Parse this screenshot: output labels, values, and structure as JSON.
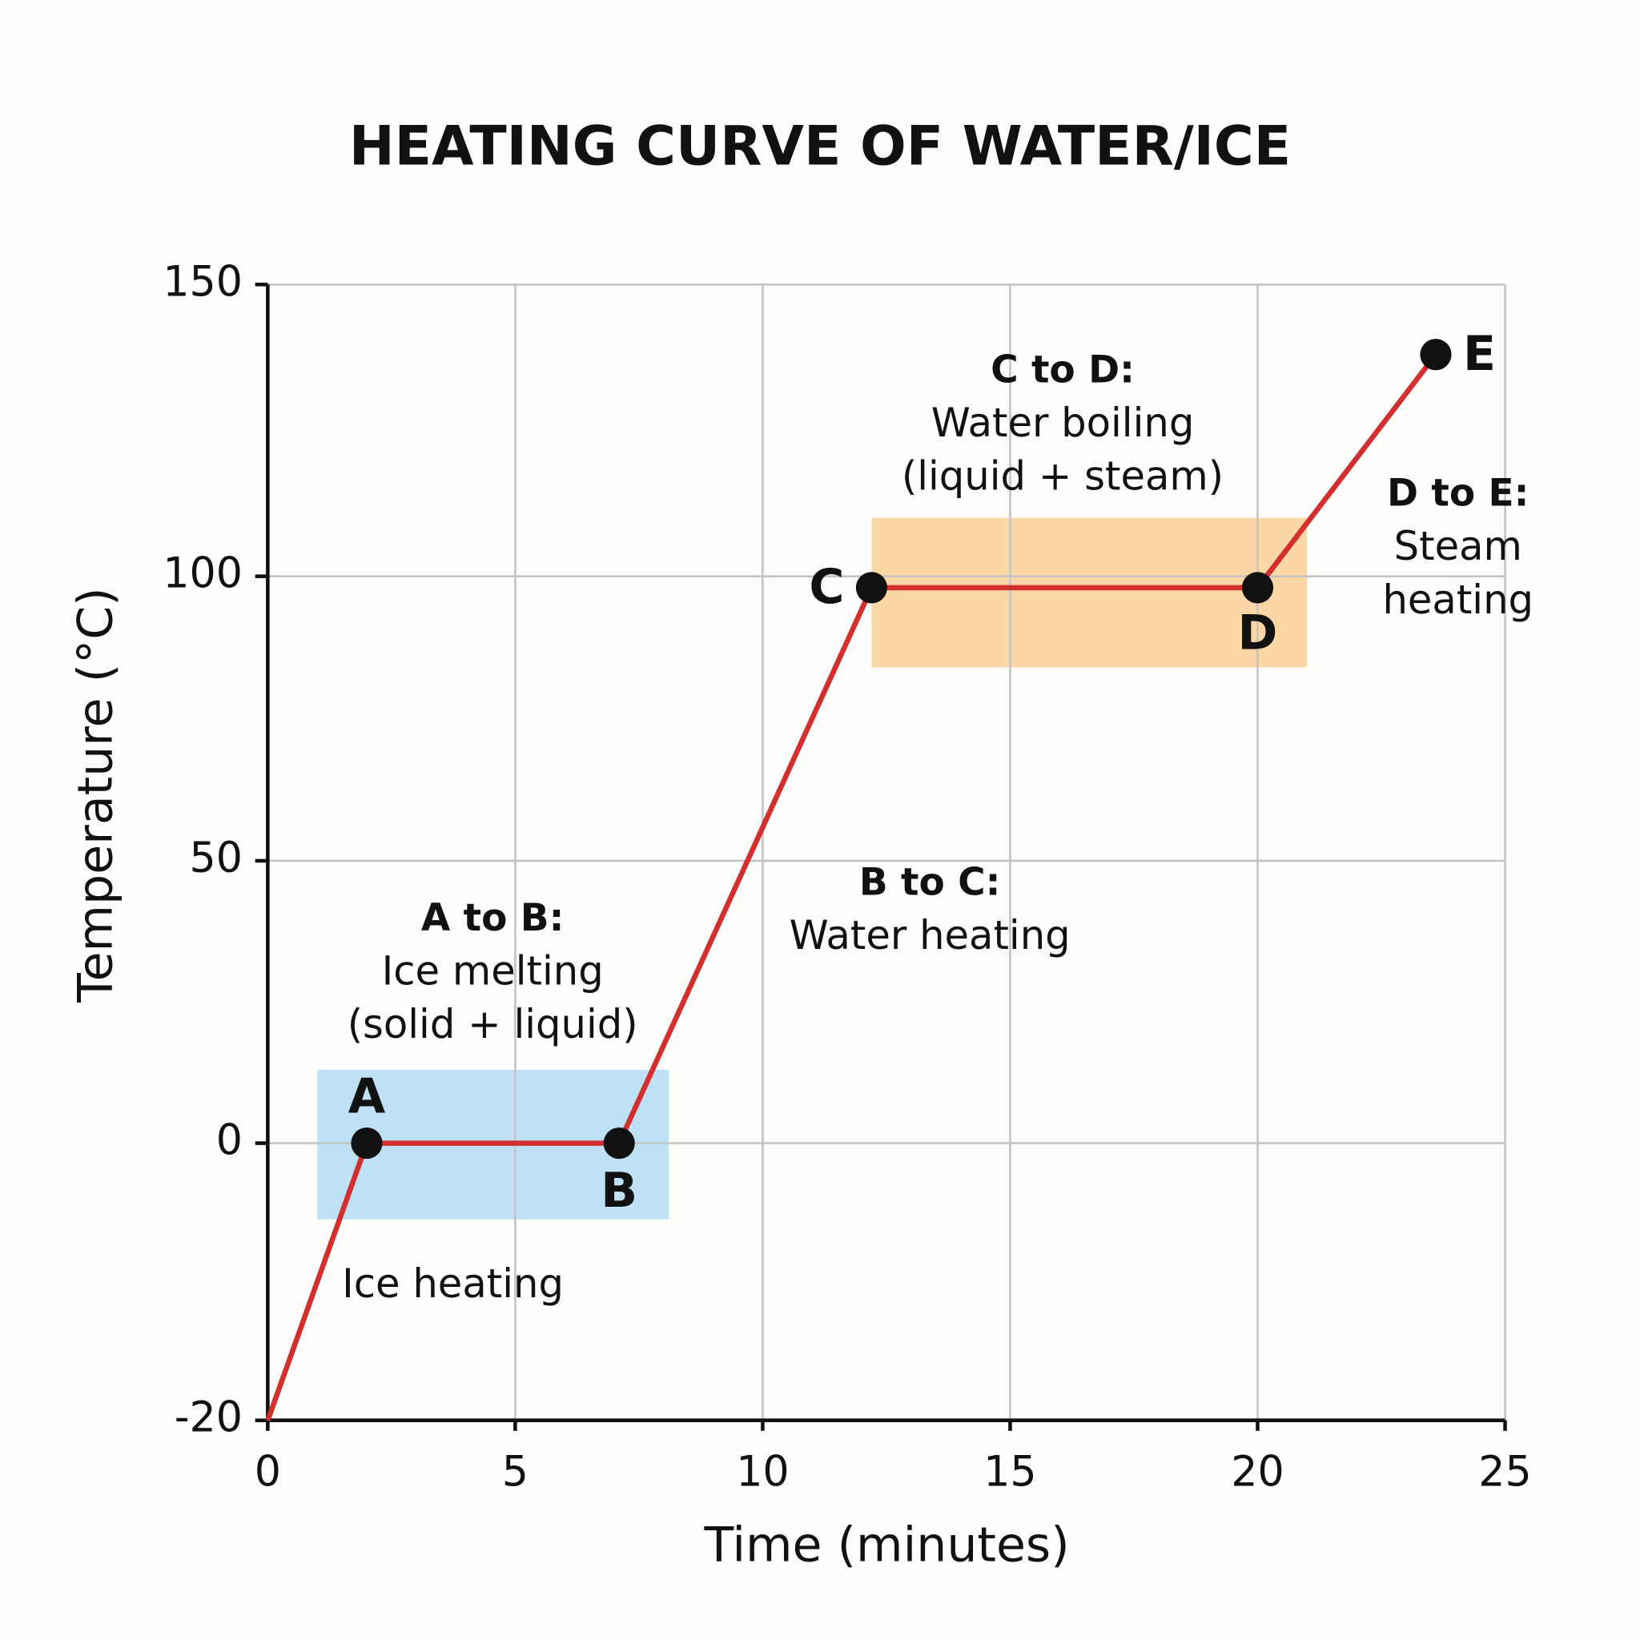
{
  "chart_data": {
    "type": "line",
    "title": "HEATING CURVE OF WATER/ICE",
    "xlabel": "Time (minutes)",
    "ylabel": "Temperature (°C)",
    "xlim": [
      0,
      25
    ],
    "ylim": [
      -20,
      150
    ],
    "x_ticks": [
      "0",
      "5",
      "10",
      "15",
      "20",
      "25"
    ],
    "y_ticks": [
      "-20",
      "0",
      "50",
      "100",
      "150"
    ],
    "grid": true,
    "line_color": "#d32f2f",
    "series": [
      {
        "x": [
          0,
          2,
          7.1,
          12.2,
          20,
          23.6
        ],
        "y": [
          -20,
          0,
          0,
          98,
          98,
          138
        ]
      }
    ],
    "points": [
      {
        "label": "A",
        "x": 2,
        "y": 0
      },
      {
        "label": "B",
        "x": 7.1,
        "y": 0
      },
      {
        "label": "C",
        "x": 12.2,
        "y": 98
      },
      {
        "label": "D",
        "x": 20,
        "y": 98
      },
      {
        "label": "E",
        "x": 23.6,
        "y": 138
      }
    ],
    "regions": [
      {
        "name": "melting",
        "x": [
          1,
          8.1
        ],
        "y": [
          -5.5,
          13
        ],
        "color": "#bfe1f6"
      },
      {
        "name": "boiling",
        "x": [
          12.2,
          21
        ],
        "y": [
          84,
          110
        ],
        "color": "#fbd7a6"
      }
    ],
    "annotations": [
      {
        "lines": [
          "Ice heating"
        ],
        "bold_first": false
      },
      {
        "lines": [
          "A to B:",
          "Ice melting",
          "(solid + liquid)"
        ],
        "bold_first": true
      },
      {
        "lines": [
          "B to C:",
          "Water heating"
        ],
        "bold_first": true
      },
      {
        "lines": [
          "C to D:",
          "Water boiling",
          "(liquid + steam)"
        ],
        "bold_first": true
      },
      {
        "lines": [
          "D to E:",
          "Steam",
          "heating"
        ],
        "bold_first": true
      }
    ]
  }
}
